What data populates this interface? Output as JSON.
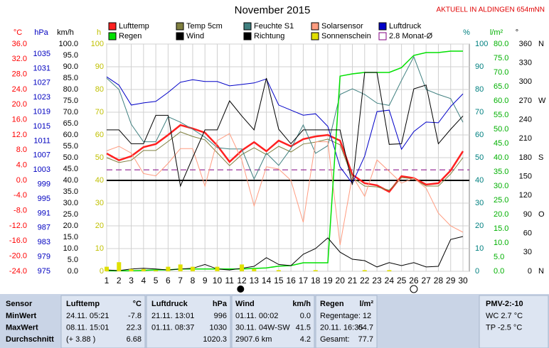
{
  "chart_data": {
    "type": "line",
    "title": "November 2015",
    "subtitle": "AKTUELL IN ALDINGEN 654mNN",
    "x": [
      1,
      2,
      3,
      4,
      5,
      6,
      7,
      8,
      9,
      10,
      11,
      12,
      13,
      14,
      15,
      16,
      17,
      18,
      19,
      20,
      21,
      22,
      23,
      24,
      25,
      26,
      27,
      28,
      29,
      30
    ],
    "xlim": [
      1,
      30
    ],
    "grid": true,
    "axes": {
      "temp": {
        "label": "°C",
        "color": "#ff0000",
        "lim": [
          -24,
          36
        ],
        "ticks": [
          {
            "value": 36,
            "label": "36.0"
          },
          {
            "value": 32,
            "label": "32.0"
          },
          {
            "value": 28,
            "label": "28.0"
          },
          {
            "value": 24,
            "label": "24.0"
          },
          {
            "value": 20,
            "label": "20.0"
          },
          {
            "value": 16,
            "label": "16.0"
          },
          {
            "value": 12,
            "label": "12.0"
          },
          {
            "value": 8,
            "label": "8.0"
          },
          {
            "value": 4,
            "label": "4.0"
          },
          {
            "value": 0,
            "label": "0.0"
          },
          {
            "value": -4,
            "label": "-4.0"
          },
          {
            "value": -8,
            "label": "-8.0"
          },
          {
            "value": -12,
            "label": "-12.0"
          },
          {
            "value": -16,
            "label": "-16.0"
          },
          {
            "value": -20,
            "label": "-20.0"
          },
          {
            "value": -24,
            "label": "-24.0"
          }
        ]
      },
      "pressure": {
        "label": "hPa",
        "color": "#0000c0",
        "lim": [
          975,
          1037.75
        ],
        "ticks": [
          1035,
          1031,
          1027,
          1023,
          1019,
          1015,
          1011,
          1007,
          1003,
          999,
          995,
          991,
          987,
          983,
          979,
          975
        ]
      },
      "speed": {
        "label": "km/h",
        "color": "#000000",
        "lim": [
          0,
          100
        ],
        "ticks": [
          {
            "value": 100,
            "label": "100.0"
          },
          {
            "value": 95,
            "label": "95.0"
          },
          {
            "value": 90,
            "label": "90.0"
          },
          {
            "value": 85,
            "label": "85.0"
          },
          {
            "value": 80,
            "label": "80.0"
          },
          {
            "value": 75,
            "label": "75.0"
          },
          {
            "value": 70,
            "label": "70.0"
          },
          {
            "value": 65,
            "label": "65.0"
          },
          {
            "value": 60,
            "label": "60.0"
          },
          {
            "value": 55,
            "label": "55.0"
          },
          {
            "value": 50,
            "label": "50.0"
          },
          {
            "value": 45,
            "label": "45.0"
          },
          {
            "value": 40,
            "label": "40.0"
          },
          {
            "value": 35,
            "label": "35.0"
          },
          {
            "value": 30,
            "label": "30.0"
          },
          {
            "value": 25,
            "label": "25.0"
          },
          {
            "value": 20,
            "label": "20.0"
          },
          {
            "value": 15,
            "label": "15.0"
          },
          {
            "value": 10,
            "label": "10.0"
          },
          {
            "value": 5,
            "label": "5.0"
          },
          {
            "value": 0,
            "label": "0.0"
          }
        ]
      },
      "hours": {
        "label": "h",
        "color": "#c0c000",
        "lim": [
          0,
          100
        ],
        "ticks": [
          100,
          90,
          80,
          70,
          60,
          50,
          40,
          30,
          20,
          10,
          0
        ]
      },
      "humidity": {
        "label": "%",
        "color": "#008080",
        "lim": [
          0,
          100
        ],
        "ticks": [
          100,
          90,
          80,
          70,
          60,
          50,
          40,
          30,
          20,
          10,
          0
        ]
      },
      "rain": {
        "label": "l/m²",
        "color": "#00b000",
        "lim": [
          0,
          80
        ],
        "ticks": [
          {
            "value": 80,
            "label": "80.0"
          },
          {
            "value": 75,
            "label": "75.0"
          },
          {
            "value": 70,
            "label": "70.0"
          },
          {
            "value": 65,
            "label": "65.0"
          },
          {
            "value": 60,
            "label": "60.0"
          },
          {
            "value": 55,
            "label": "55.0"
          },
          {
            "value": 50,
            "label": "50.0"
          },
          {
            "value": 45,
            "label": "45.0"
          },
          {
            "value": 40,
            "label": "40.0"
          },
          {
            "value": 35,
            "label": "35.0"
          },
          {
            "value": 30,
            "label": "30.0"
          },
          {
            "value": 25,
            "label": "25.0"
          },
          {
            "value": 20,
            "label": "20.0"
          },
          {
            "value": 15,
            "label": "15.0"
          },
          {
            "value": 10,
            "label": "10.0"
          },
          {
            "value": 5,
            "label": "5.0"
          },
          {
            "value": 0,
            "label": "0.0"
          }
        ]
      },
      "direction": {
        "label": "°",
        "color": "#000000",
        "lim": [
          0,
          360
        ],
        "ticks": [
          360,
          330,
          300,
          270,
          240,
          210,
          180,
          150,
          120,
          90,
          60,
          30,
          0
        ],
        "compass": [
          {
            "value": 360,
            "label": "N"
          },
          {
            "value": 270,
            "label": "W"
          },
          {
            "value": 180,
            "label": "S"
          },
          {
            "value": 90,
            "label": "O"
          },
          {
            "value": 0,
            "label": "N"
          }
        ]
      }
    },
    "series": [
      {
        "name": "Lufttemp",
        "type": "line",
        "axis": "temp",
        "color": "#ff2020",
        "width": 2.5,
        "values": [
          7.1,
          5.3,
          6.4,
          8.8,
          9.6,
          12,
          14.6,
          13.7,
          12.6,
          9.2,
          4.9,
          7.9,
          10.1,
          7.7,
          10.5,
          9,
          10.9,
          11.6,
          12,
          10.5,
          1.5,
          -0.75,
          -1.3,
          -3,
          1.1,
          0.6,
          -1.1,
          -0.75,
          2.6,
          7.7
        ]
      },
      {
        "name": "Temp 5cm",
        "type": "line",
        "axis": "temp",
        "color": "#808040",
        "width": 1,
        "values": [
          6,
          4.7,
          5.3,
          7.9,
          7.9,
          10.3,
          12.8,
          11.6,
          10.7,
          7.3,
          3.9,
          6.8,
          8.6,
          6.8,
          9,
          7.5,
          9.6,
          10.1,
          10.9,
          9.4,
          0.75,
          -1.5,
          -1.7,
          -2.6,
          0.75,
          0.4,
          -1.5,
          -1.5,
          1.7,
          6
        ]
      },
      {
        "name": "Feuchte S1",
        "type": "line",
        "axis": "humidity",
        "color": "#408080",
        "width": 1,
        "values": [
          85,
          80,
          64.7,
          57,
          57,
          68,
          65.6,
          62.5,
          59,
          54.4,
          53.8,
          53.8,
          40.6,
          52,
          46.6,
          54,
          64.4,
          51.9,
          55.3,
          77.8,
          80.3,
          77.8,
          74,
          73,
          84,
          94.4,
          80,
          77.8,
          76,
          65.6
        ]
      },
      {
        "name": "Solarsensor",
        "type": "line",
        "axis": "humidity",
        "color": "#ff9c80",
        "width": 1,
        "values": [
          53,
          55,
          52,
          43,
          42,
          47.5,
          54,
          54,
          37.5,
          57.5,
          60.6,
          49,
          28.8,
          46,
          45,
          40,
          21.6,
          57,
          57,
          11.6,
          42,
          33,
          49,
          44,
          38.8,
          41,
          36.6,
          25.6,
          20,
          17.2
        ]
      },
      {
        "name": "Luftdruck",
        "type": "line",
        "axis": "pressure",
        "color": "#0000c8",
        "width": 1,
        "values": [
          1028.7,
          1026.4,
          1020.9,
          1021.5,
          1021.9,
          1024.4,
          1027.2,
          1027.9,
          1027.4,
          1027.4,
          1026.2,
          1026.6,
          1027,
          1028.1,
          1020.9,
          1019.5,
          1018.1,
          1018.5,
          1015,
          1003.8,
          999.3,
          1006.8,
          1019.1,
          1019.5,
          1008.7,
          1013.6,
          1016.2,
          1016,
          1020.5,
          1024
        ]
      },
      {
        "name": "Regen",
        "type": "line",
        "axis": "rain",
        "color": "#00e000",
        "width": 1.5,
        "values": [
          0.2,
          0.2,
          0.2,
          0.3,
          0.5,
          0.5,
          0.8,
          0.8,
          0.8,
          0.8,
          0.8,
          0.8,
          1,
          1.2,
          1.8,
          2,
          3,
          3,
          3,
          68.7,
          69.5,
          70,
          70,
          70,
          71.7,
          76,
          77,
          77,
          77.5,
          77.5
        ]
      },
      {
        "name": "Wind",
        "type": "line",
        "axis": "speed",
        "color": "#000000",
        "width": 1,
        "values": [
          0.6,
          0.3,
          1,
          1.3,
          1,
          0.6,
          1,
          1.3,
          3,
          1,
          0.6,
          1.3,
          2.2,
          6,
          3,
          2.5,
          7.5,
          10,
          14.7,
          8.4,
          5.3,
          4.7,
          1.9,
          3.8,
          2.5,
          3.8,
          1.9,
          2.2,
          14,
          15.3
        ]
      },
      {
        "name": "Richtung",
        "type": "line",
        "axis": "direction",
        "color": "#000000",
        "width": 1,
        "values": [
          224,
          224,
          202,
          202,
          247,
          247,
          135,
          180,
          224,
          224,
          270,
          246,
          224,
          306,
          225,
          202,
          224,
          224,
          224,
          224,
          137,
          315,
          315,
          201,
          202,
          289,
          295,
          202,
          225,
          246
        ]
      },
      {
        "name": "Sonnenschein",
        "type": "bar",
        "axis": "hours",
        "color": "#e0e000",
        "values": [
          2,
          4,
          1,
          1,
          0.5,
          2,
          3,
          2,
          0,
          2,
          0,
          3,
          1,
          0,
          0.5,
          0,
          0,
          0.5,
          0,
          0,
          0,
          0.5,
          0,
          0.5,
          0,
          0,
          0,
          0,
          0,
          0
        ]
      }
    ],
    "reference_line": {
      "name": "2.8 Monat-Ø",
      "axis": "temp",
      "value": 2.8,
      "color": "#800080"
    },
    "new_moon": 11.9,
    "full_moon": 26
  },
  "table": {
    "header": [
      "Sensor",
      "Lufttemp",
      "°C",
      "Luftdruck",
      "hPa",
      "Wind",
      "km/h",
      "Regen",
      "l/m²",
      "PMV-2:-10"
    ],
    "rows": [
      [
        "MinWert",
        "24.11.  05:21",
        "-7.8",
        "21.11.  13:01",
        "996",
        "01.11.  00:02",
        "0.0",
        "Regentage: 12",
        null,
        "WC 2.7 °C"
      ],
      [
        "MaxWert",
        "08.11.  15:01",
        "22.3",
        "01.11.  08:37",
        "1030",
        "30.11.  04W-SW",
        "41.5",
        "20.11.  16:35",
        "64.7",
        "TP -2.5 °C"
      ],
      [
        "Durchschnitt",
        "(+ 3.88 )",
        "6.68",
        null,
        "1020.3",
        "2907.6 km",
        "4.2",
        "Gesamt:",
        "77.7",
        null
      ]
    ]
  }
}
